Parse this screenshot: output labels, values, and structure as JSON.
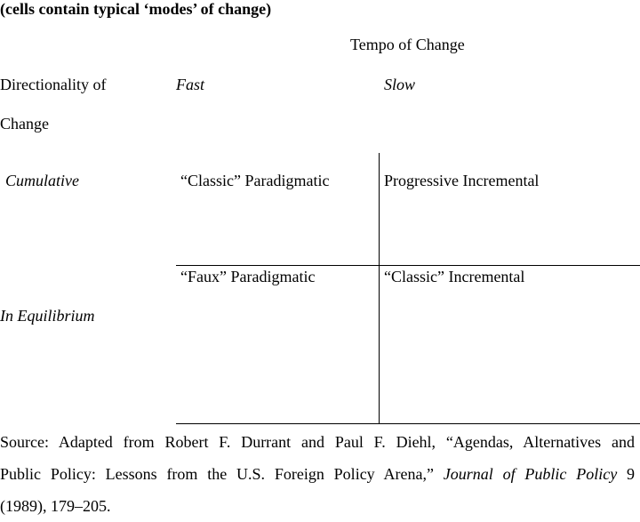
{
  "caption": "(cells contain typical ‘modes’ of change)",
  "table": {
    "column_group_header": "Tempo of Change",
    "row_group_header_line1": "Directionality of",
    "row_group_header_line2": "Change",
    "columns": [
      "Fast",
      "Slow"
    ],
    "rows": [
      {
        "label": "Cumulative",
        "cells": [
          "“Classic” Paradigmatic",
          "Progressive Incremental"
        ]
      },
      {
        "label": "In Equilibrium",
        "cells": [
          "“Faux” Paradigmatic",
          "“Classic” Incremental"
        ]
      }
    ]
  },
  "source": {
    "line1": "Source: Adapted from Robert F. Durrant and Paul F. Diehl, “Agendas, Alternatives and",
    "line2_before_journal": "Public Policy: Lessons from the U.S. Foreign Policy Arena,” ",
    "journal": "Journal of Public Policy",
    "line2_after_journal": " 9",
    "line3": "(1989), 179–205."
  }
}
